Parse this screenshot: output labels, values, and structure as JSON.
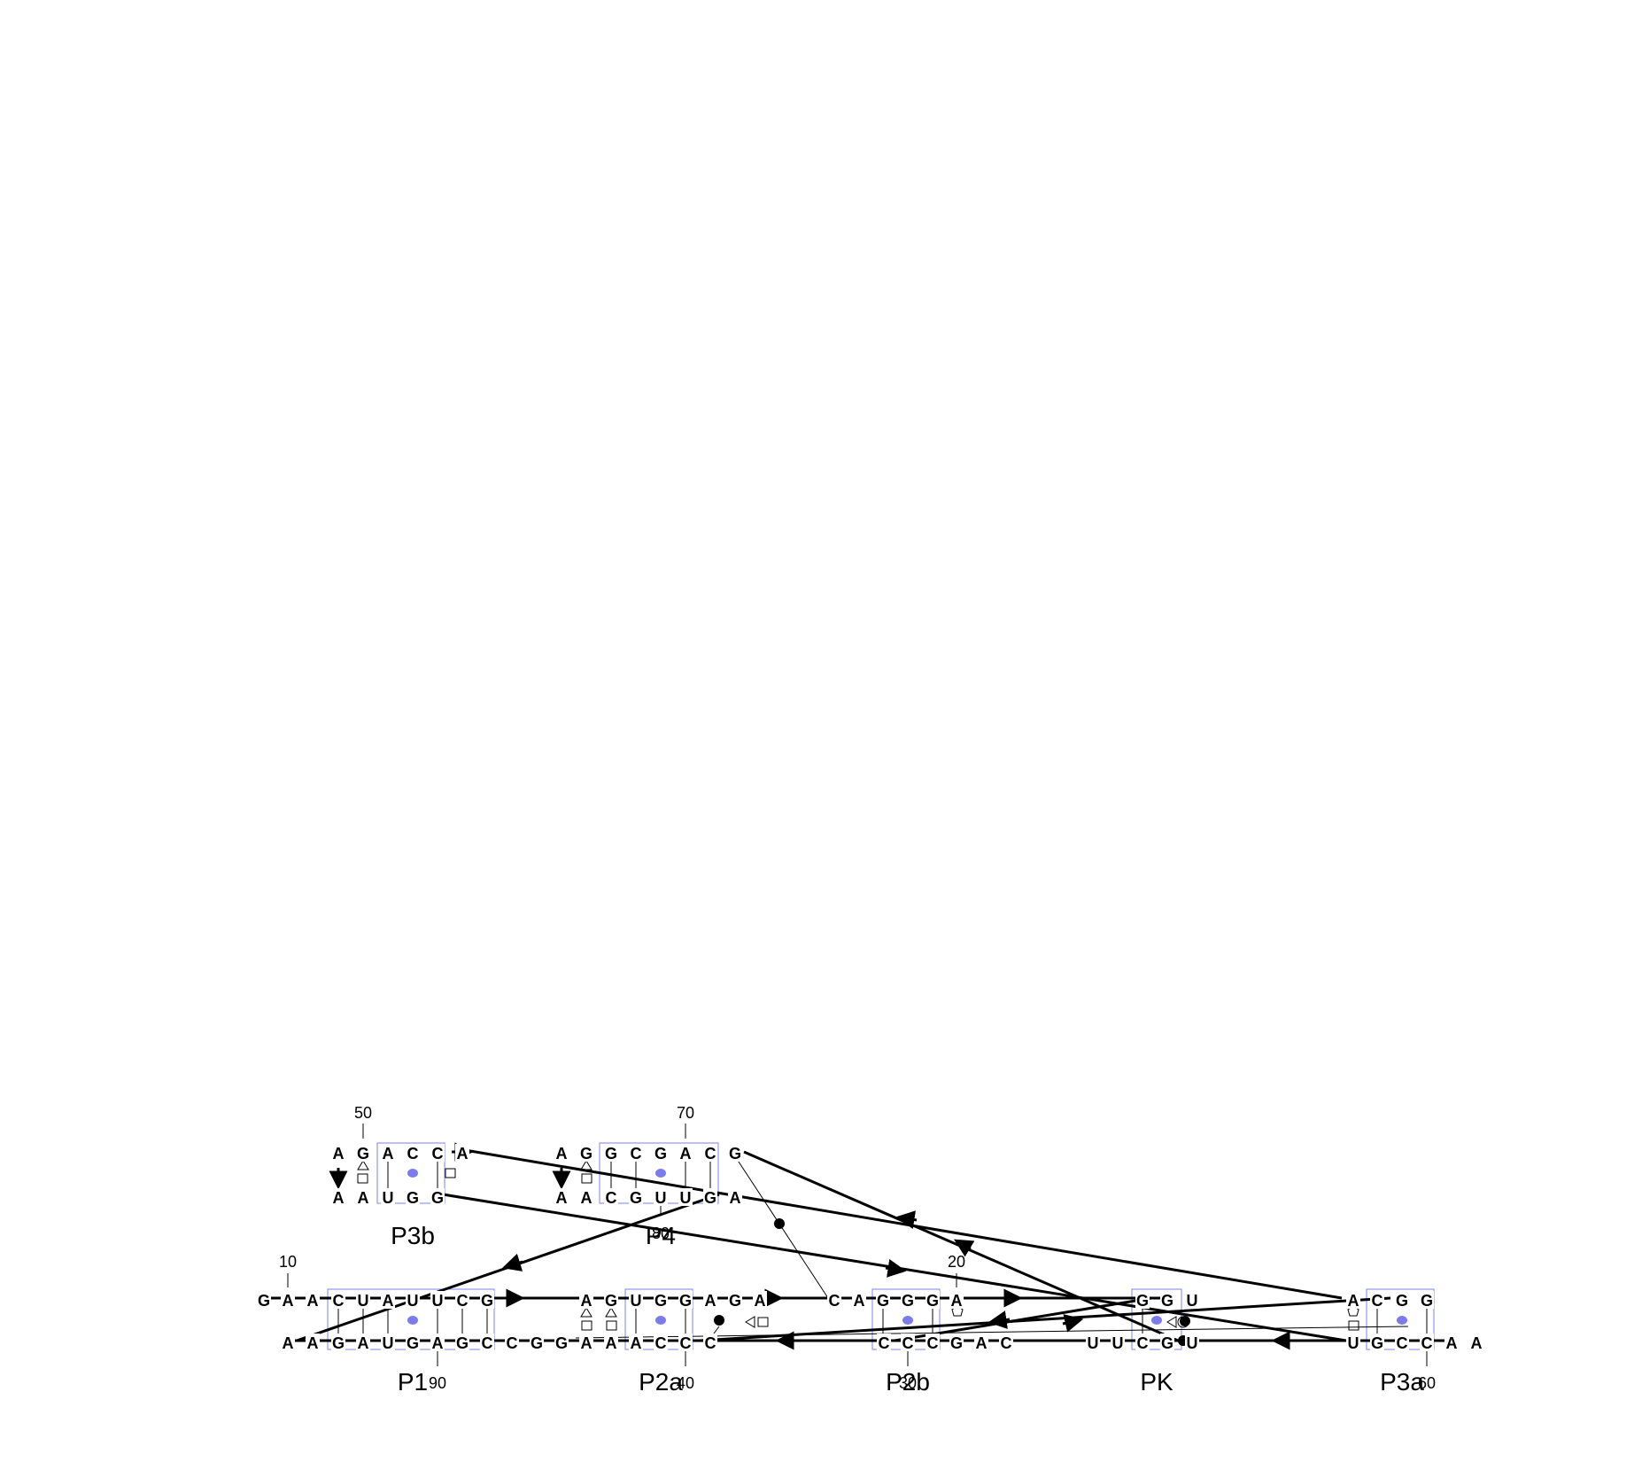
{
  "helix_labels": [
    "P3b",
    "P4",
    "P1",
    "P2a",
    "P2b",
    "PK",
    "P3a"
  ],
  "position_numbers": [
    "10",
    "20",
    "30",
    "40",
    "50",
    "60",
    "70",
    "80",
    "90"
  ],
  "strands": {
    "p3b_top": [
      "A",
      "G",
      "A",
      "C",
      "C",
      "A"
    ],
    "p3b_bottom": [
      "A",
      "A",
      "U",
      "G",
      "G"
    ],
    "p4_top": [
      "A",
      "G",
      "G",
      "C",
      "G",
      "A",
      "C",
      "G"
    ],
    "p4_bottom": [
      "A",
      "A",
      "C",
      "G",
      "U",
      "U",
      "G",
      "A"
    ],
    "row_top": [
      "G",
      "A",
      "A",
      "C",
      "U",
      "A",
      "U",
      "U",
      "C",
      "G",
      "A",
      "G",
      "U",
      "G",
      "G",
      "A",
      "G",
      "A",
      "C",
      "A",
      "G",
      "G",
      "G",
      "A",
      "G",
      "G",
      "U",
      "A",
      "C",
      "G",
      "G"
    ],
    "row_bottom": [
      "A",
      "A",
      "G",
      "A",
      "U",
      "G",
      "A",
      "G",
      "C",
      "C",
      "G",
      "G",
      "A",
      "A",
      "A",
      "C",
      "C",
      "C",
      "C",
      "C",
      "C",
      "G",
      "A",
      "C",
      "U",
      "U",
      "C",
      "G",
      "U",
      "U",
      "G",
      "C",
      "C",
      "A",
      "A"
    ]
  },
  "colors": {
    "backbone": "#000000",
    "helix_box": "#8080f0",
    "watson_crick_pair": "#7b7bee"
  }
}
